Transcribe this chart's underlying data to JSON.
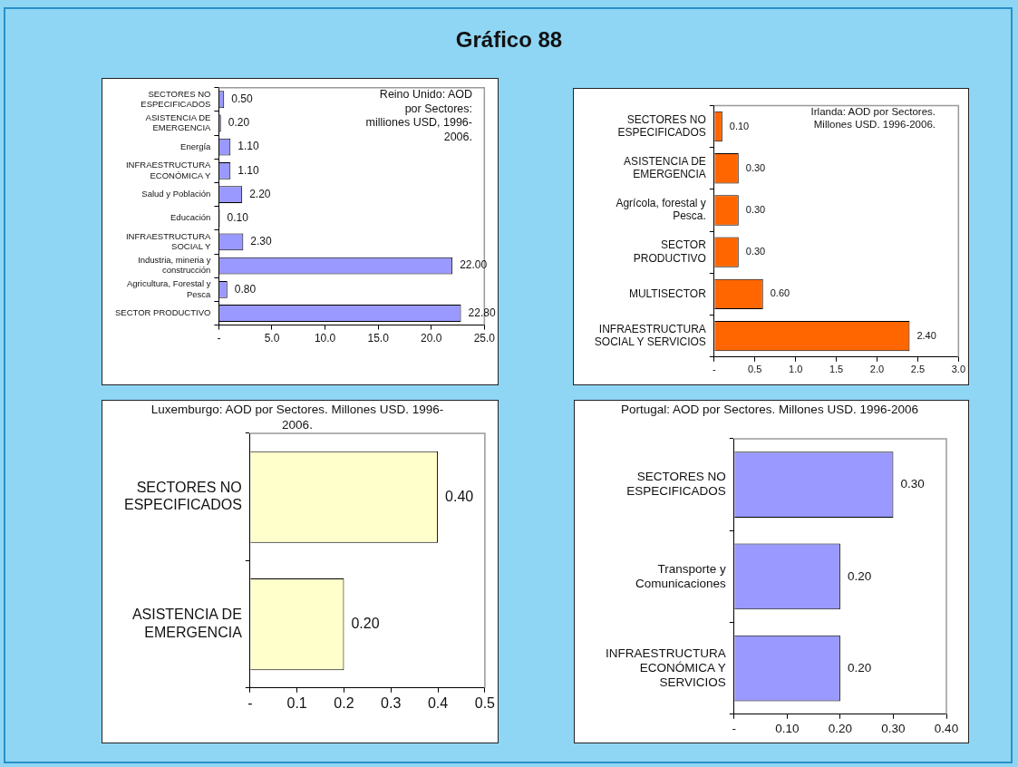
{
  "chart_data": [
    {
      "type": "other",
      "title": "Gráfico 88"
    },
    {
      "type": "bar",
      "orientation": "horizontal",
      "title": "Reino Unido: AOD por Sectores: milliones USD, 1996-2006.",
      "categories": [
        "SECTORES NO ESPECIFICADOS",
        "ASISTENCIA DE EMERGENCIA",
        "Energía",
        "INFRAESTRUCTURA ECONÓMICA Y",
        "Salud y Población",
        "Educación",
        "INFRAESTRUCTURA SOCIAL Y",
        "Industria, mineria y construcción",
        "Agricultura, Forestal y Pesca",
        "SECTOR PRODUCTIVO"
      ],
      "values": [
        0.5,
        0.2,
        1.1,
        1.1,
        2.2,
        0.1,
        2.3,
        22.0,
        0.8,
        22.8
      ],
      "value_labels": [
        "0.50",
        "0.20",
        "1.10",
        "1.10",
        "2.20",
        "0.10",
        "2.30",
        "22.00",
        "0.80",
        "22.80"
      ],
      "color": "#9999ff",
      "xlim": [
        0,
        25
      ],
      "xticks": [
        {
          "value": 0,
          "label": "-"
        },
        {
          "value": 5,
          "label": "5.0"
        },
        {
          "value": 10,
          "label": "10.0"
        },
        {
          "value": 15,
          "label": "15.0"
        },
        {
          "value": 20,
          "label": "20.0"
        },
        {
          "value": 25,
          "label": "25.0"
        }
      ],
      "grid": false,
      "legend": false
    },
    {
      "type": "bar",
      "orientation": "horizontal",
      "title": "Irlanda: AOD por Sectores. Millones USD. 1996-2006.",
      "categories": [
        "SECTORES NO ESPECIFICADOS",
        "ASISTENCIA DE EMERGENCIA",
        "Agrícola, forestal y Pesca.",
        "SECTOR PRODUCTIVO",
        "MULTISECTOR",
        "INFRAESTRUCTURA SOCIAL Y SERVICIOS"
      ],
      "values": [
        0.1,
        0.3,
        0.3,
        0.3,
        0.6,
        2.4
      ],
      "value_labels": [
        "0.10",
        "0.30",
        "0.30",
        "0.30",
        "0.60",
        "2.40"
      ],
      "color": "#ff6600",
      "xlim": [
        0,
        3
      ],
      "xticks": [
        {
          "value": 0,
          "label": "-"
        },
        0.5,
        {
          "value": 1,
          "label": "1.0"
        },
        1.5,
        {
          "value": 2,
          "label": "2.0"
        },
        2.5,
        {
          "value": 3,
          "label": "3.0"
        }
      ],
      "grid": false,
      "legend": false
    },
    {
      "type": "bar",
      "orientation": "horizontal",
      "title": "Luxemburgo: AOD por Sectores. Millones USD. 1996-2006.",
      "categories": [
        "SECTORES NO ESPECIFICADOS",
        "ASISTENCIA DE EMERGENCIA"
      ],
      "values": [
        0.4,
        0.2
      ],
      "value_labels": [
        "0.40",
        "0.20"
      ],
      "color": "#ffffcc",
      "xlim": [
        0,
        0.5
      ],
      "xticks": [
        {
          "value": 0,
          "label": "-"
        },
        0.1,
        0.2,
        0.3,
        0.4,
        0.5
      ],
      "grid": false,
      "legend": false
    },
    {
      "type": "bar",
      "orientation": "horizontal",
      "title": "Portugal: AOD por Sectores. Millones USD. 1996-2006",
      "categories": [
        "SECTORES NO ESPECIFICADOS",
        "Transporte y Comunicaciones",
        "INFRAESTRUCTURA ECONÓMICA Y SERVICIOS"
      ],
      "values": [
        0.3,
        0.2,
        0.2
      ],
      "value_labels": [
        "0.30",
        "0.20",
        "0.20"
      ],
      "color": "#9999ff",
      "xlim": [
        0,
        0.4
      ],
      "xticks": [
        {
          "value": 0,
          "label": "-"
        },
        {
          "value": 0.1,
          "label": "0.10"
        },
        {
          "value": 0.2,
          "label": "0.20"
        },
        {
          "value": 0.3,
          "label": "0.30"
        },
        {
          "value": 0.4,
          "label": "0.40"
        }
      ],
      "grid": false,
      "legend": false
    }
  ]
}
